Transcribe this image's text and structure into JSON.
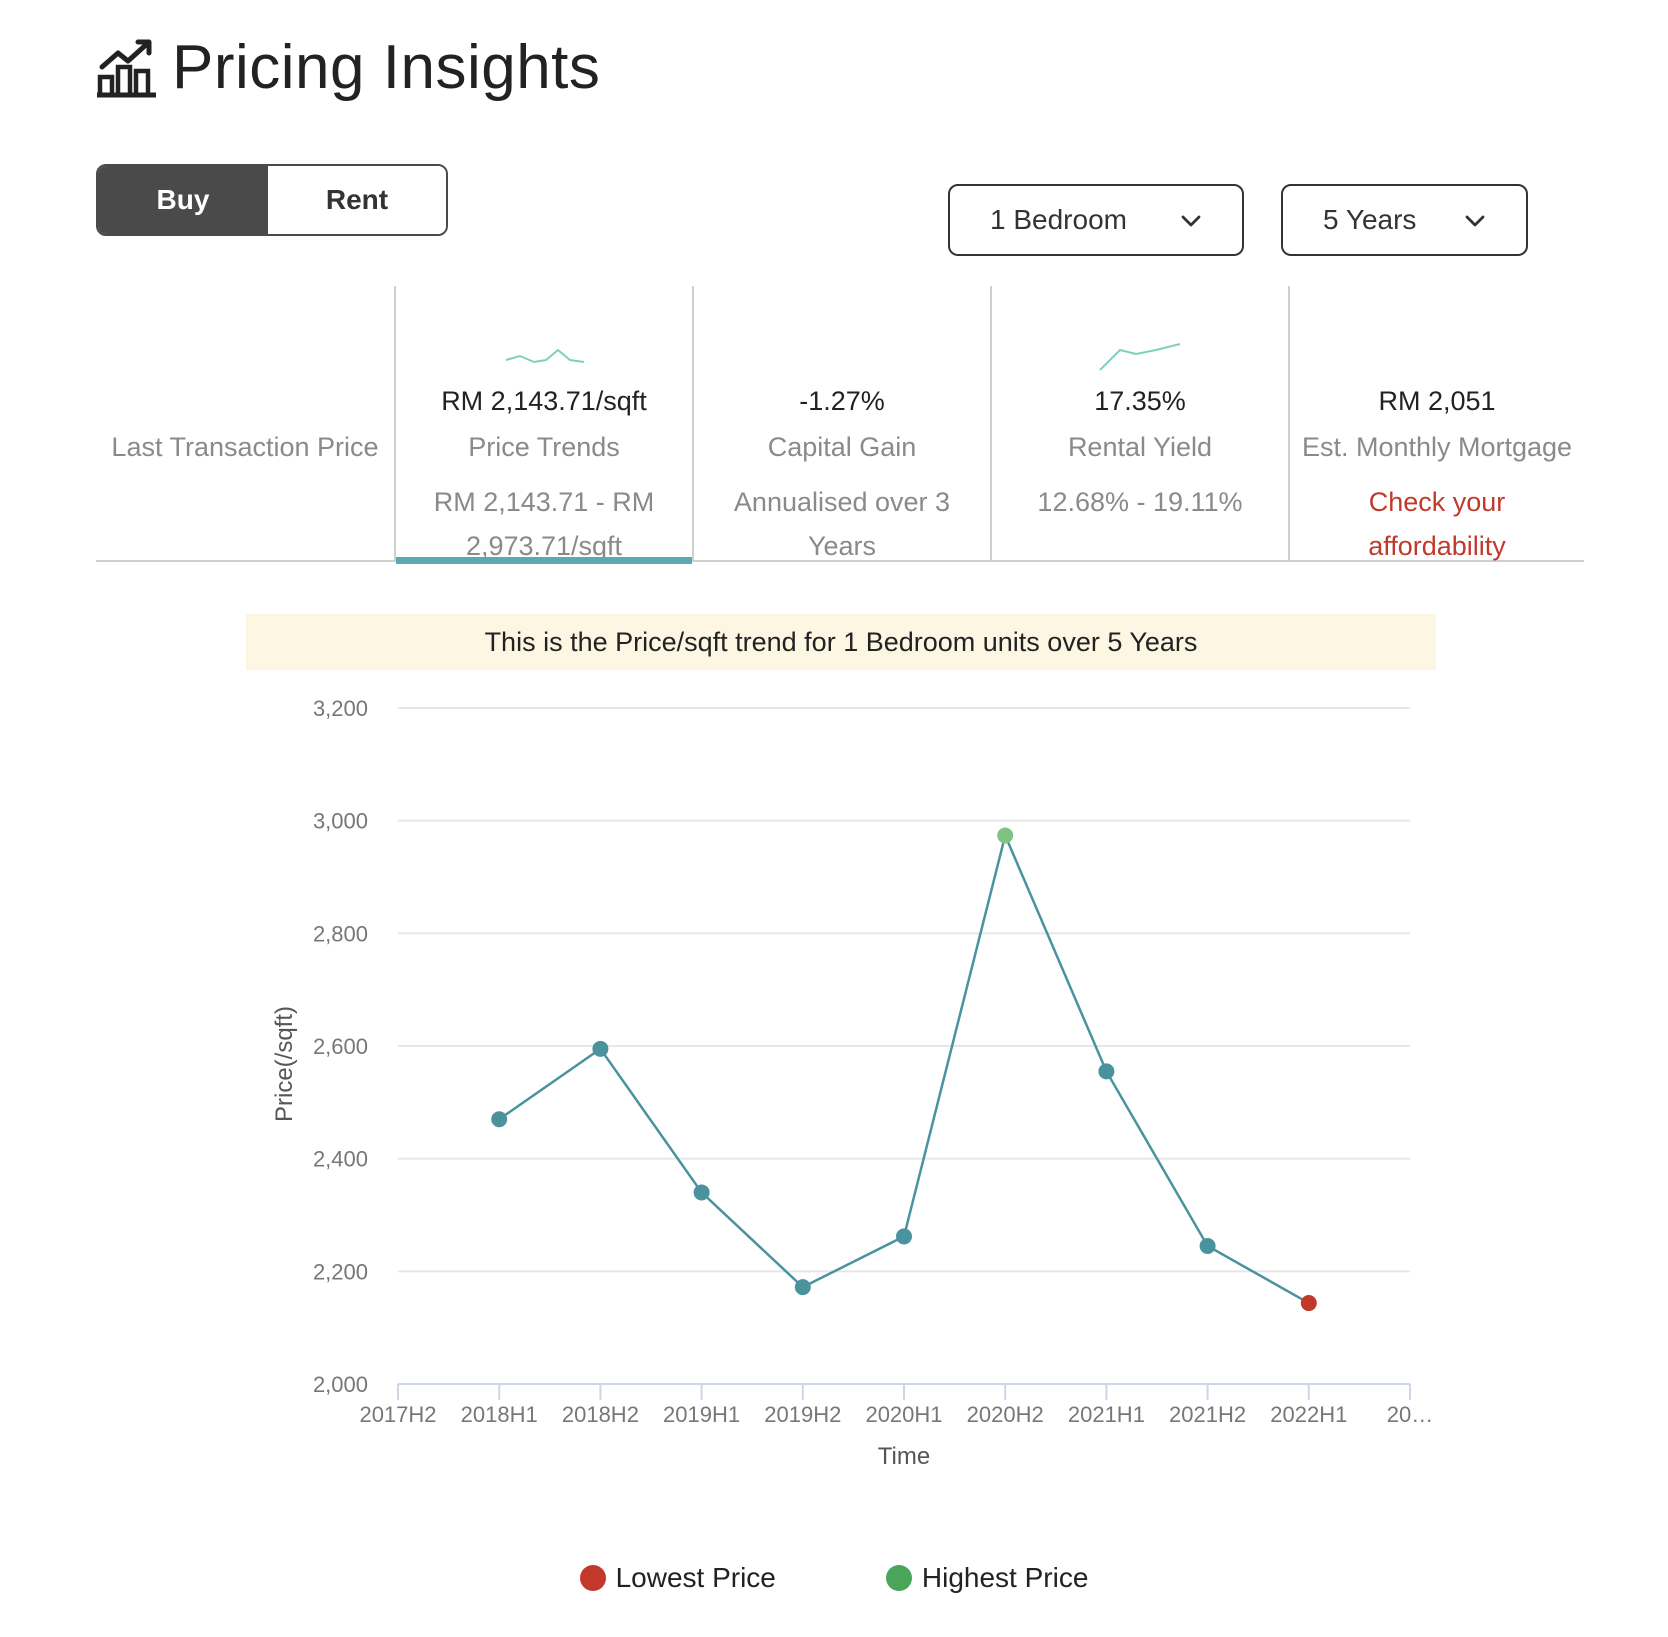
{
  "header": {
    "title": "Pricing Insights",
    "icon": "chart-growth-icon"
  },
  "toggle": {
    "buy_label": "Buy",
    "rent_label": "Rent",
    "selected": "Buy"
  },
  "filters": {
    "bedroom": {
      "selected": "1 Bedroom"
    },
    "period": {
      "selected": "5 Years"
    }
  },
  "metrics": [
    {
      "value": "",
      "label": "Last Transaction Price",
      "sub": ""
    },
    {
      "value": "RM 2,143.71/sqft",
      "label": "Price Trends",
      "sub": "RM 2,143.71 - RM 2,973.71/sqft",
      "active": true
    },
    {
      "value": "-1.27%",
      "label": "Capital Gain",
      "sub": "Annualised over 3 Years"
    },
    {
      "value": "17.35%",
      "label": "Rental Yield",
      "sub": "12.68% - 19.11%"
    },
    {
      "value": "RM 2,051",
      "label": "Est. Monthly Mortgage",
      "sub": "Check your affordability"
    }
  ],
  "banner": {
    "text": "This is the Price/sqft trend for 1 Bedroom units over 5 Years"
  },
  "colors": {
    "line": "#4a939e",
    "point": "#4a939e",
    "lowest": "#c2392b",
    "highest": "#7fc382",
    "active_tab": "#5aa9b3",
    "spark": "#7fcfbf"
  },
  "chart_data": {
    "type": "line",
    "xlabel": "Time",
    "ylabel": "Price(/sqft)",
    "ylim": [
      2000,
      3200
    ],
    "yticks": [
      "3,200",
      "3,000",
      "2,800",
      "2,600",
      "2,400",
      "2,200",
      "2,000"
    ],
    "categories": [
      "2017H2",
      "2018H1",
      "2018H2",
      "2019H1",
      "2019H2",
      "2020H1",
      "2020H2",
      "2021H1",
      "2021H2",
      "2022H1",
      "20…"
    ],
    "values": [
      null,
      2470,
      2595,
      2340,
      2172,
      2262,
      2973.71,
      2555,
      2245,
      2143.71,
      null
    ],
    "lowest_index": 9,
    "highest_index": 6
  },
  "legend": {
    "lowest_label": "Lowest Price",
    "highest_label": "Highest Price"
  }
}
